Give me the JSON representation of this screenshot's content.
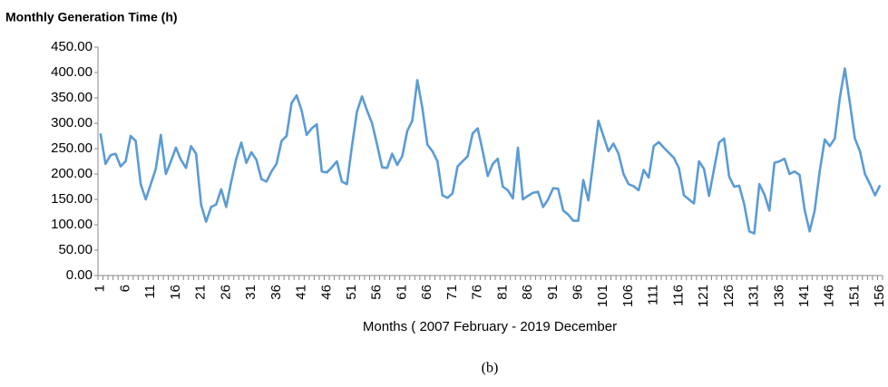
{
  "chart_data": {
    "type": "line",
    "title": "Monthly Generation Time (h)",
    "xlabel": "Months ( 2007 February - 2019 December",
    "caption": "(b)",
    "categories": [
      "1",
      null,
      null,
      null,
      null,
      "6",
      null,
      null,
      null,
      null,
      "11",
      null,
      null,
      null,
      null,
      "16",
      null,
      null,
      null,
      null,
      "21",
      null,
      null,
      null,
      null,
      "26",
      null,
      null,
      null,
      null,
      "31",
      null,
      null,
      null,
      null,
      "36",
      null,
      null,
      null,
      null,
      "41",
      null,
      null,
      null,
      null,
      "46",
      null,
      null,
      null,
      null,
      "51",
      null,
      null,
      null,
      null,
      "56",
      null,
      null,
      null,
      null,
      "61",
      null,
      null,
      null,
      null,
      "66",
      null,
      null,
      null,
      null,
      "71",
      null,
      null,
      null,
      null,
      "76",
      null,
      null,
      null,
      null,
      "81",
      null,
      null,
      null,
      null,
      "86",
      null,
      null,
      null,
      null,
      "91",
      null,
      null,
      null,
      null,
      "96",
      null,
      null,
      null,
      null,
      "101",
      null,
      null,
      null,
      null,
      "106",
      null,
      null,
      null,
      null,
      "111",
      null,
      null,
      null,
      null,
      "116",
      null,
      null,
      null,
      null,
      "121",
      null,
      null,
      null,
      null,
      "126",
      null,
      null,
      null,
      null,
      "131",
      null,
      null,
      null,
      null,
      "136",
      null,
      null,
      null,
      null,
      "141",
      null,
      null,
      null,
      null,
      "146",
      null,
      null,
      null,
      null,
      "151",
      null,
      null,
      null,
      null,
      "156"
    ],
    "values": [
      280,
      220,
      237,
      240,
      215,
      225,
      275,
      265,
      180,
      150,
      180,
      210,
      277,
      200,
      225,
      252,
      228,
      212,
      255,
      240,
      140,
      106,
      135,
      140,
      170,
      135,
      185,
      230,
      262,
      222,
      243,
      228,
      190,
      185,
      205,
      220,
      265,
      275,
      340,
      355,
      325,
      277,
      290,
      298,
      205,
      203,
      213,
      225,
      185,
      180,
      255,
      323,
      353,
      325,
      300,
      258,
      213,
      212,
      240,
      218,
      235,
      285,
      305,
      385,
      330,
      258,
      245,
      225,
      158,
      153,
      162,
      215,
      225,
      235,
      280,
      290,
      245,
      196,
      220,
      230,
      175,
      168,
      152,
      252,
      150,
      157,
      163,
      165,
      135,
      150,
      172,
      171,
      128,
      120,
      108,
      108,
      188,
      148,
      225,
      305,
      275,
      245,
      260,
      240,
      200,
      180,
      176,
      168,
      208,
      193,
      255,
      263,
      252,
      242,
      232,
      212,
      158,
      150,
      142,
      225,
      210,
      157,
      210,
      262,
      270,
      195,
      175,
      177,
      140,
      87,
      83,
      180,
      160,
      128,
      222,
      225,
      230,
      200,
      205,
      198,
      130,
      87,
      128,
      205,
      268,
      255,
      270,
      350,
      408,
      340,
      270,
      245,
      200,
      180,
      158,
      178
    ],
    "color": "#5b9bd5",
    "ylim": [
      0,
      450
    ],
    "yticks": [
      {
        "value": 0,
        "label": "0.00"
      },
      {
        "value": 50,
        "label": "50.00"
      },
      {
        "value": 100,
        "label": "100.00"
      },
      {
        "value": 150,
        "label": "150.00"
      },
      {
        "value": 200,
        "label": "200.00"
      },
      {
        "value": 250,
        "label": "250.00"
      },
      {
        "value": 300,
        "label": "300.00"
      },
      {
        "value": 350,
        "label": "350.00"
      },
      {
        "value": 400,
        "label": "400.00"
      },
      {
        "value": 450,
        "label": "450.00"
      }
    ],
    "grid": false
  }
}
